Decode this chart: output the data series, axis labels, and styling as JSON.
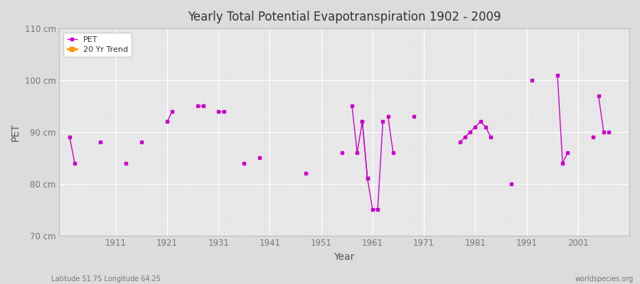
{
  "title": "Yearly Total Potential Evapotranspiration 1902 - 2009",
  "xlabel": "Year",
  "ylabel": "PET",
  "ylim": [
    70,
    110
  ],
  "xlim": [
    1900,
    2011
  ],
  "ytick_labels": [
    "70 cm",
    "80 cm",
    "90 cm",
    "100 cm",
    "110 cm"
  ],
  "ytick_values": [
    70,
    80,
    90,
    100,
    110
  ],
  "xtick_values": [
    1911,
    1921,
    1931,
    1941,
    1951,
    1961,
    1971,
    1981,
    1991,
    2001
  ],
  "pet_color": "#cc00cc",
  "trend_color": "#ff9900",
  "bg_outer": "#dcdcdc",
  "bg_plot": "#e8e8e8",
  "grid_color_major": "#ffffff",
  "grid_color_minor": "#d0d0d0",
  "bottom_left_text": "Latitude 51.75 Longitude 64.25",
  "bottom_right_text": "worldspecies.org",
  "pet_segments": [
    {
      "years": [
        1902,
        1903
      ],
      "values": [
        89,
        84
      ]
    },
    {
      "years": [
        1908
      ],
      "values": [
        88
      ]
    },
    {
      "years": [
        1913
      ],
      "values": [
        84
      ]
    },
    {
      "years": [
        1916
      ],
      "values": [
        88
      ]
    },
    {
      "years": [
        1921,
        1922
      ],
      "values": [
        92,
        94
      ]
    },
    {
      "years": [
        1927,
        1928
      ],
      "values": [
        95,
        95
      ]
    },
    {
      "years": [
        1931,
        1932
      ],
      "values": [
        94,
        94
      ]
    },
    {
      "years": [
        1936
      ],
      "values": [
        84
      ]
    },
    {
      "years": [
        1939
      ],
      "values": [
        85
      ]
    },
    {
      "years": [
        1948
      ],
      "values": [
        82
      ]
    },
    {
      "years": [
        1955
      ],
      "values": [
        86
      ]
    },
    {
      "years": [
        1957,
        1958,
        1959,
        1960
      ],
      "values": [
        95,
        86,
        92,
        81
      ]
    },
    {
      "years": [
        1959,
        1960,
        1961,
        1962,
        1963
      ],
      "values": [
        92,
        81,
        75,
        75,
        92
      ]
    },
    {
      "years": [
        1964,
        1965
      ],
      "values": [
        93,
        86
      ]
    },
    {
      "years": [
        1969
      ],
      "values": [
        93
      ]
    },
    {
      "years": [
        1978,
        1979,
        1980,
        1981,
        1982,
        1983,
        1984
      ],
      "values": [
        88,
        89,
        90,
        91,
        92,
        91,
        89
      ]
    },
    {
      "years": [
        1988
      ],
      "values": [
        80
      ]
    },
    {
      "years": [
        1992
      ],
      "values": [
        100
      ]
    },
    {
      "years": [
        1997,
        1998,
        1999
      ],
      "values": [
        101,
        84,
        86
      ]
    },
    {
      "years": [
        2004
      ],
      "values": [
        89
      ]
    },
    {
      "years": [
        2005,
        2006
      ],
      "values": [
        97,
        90
      ]
    },
    {
      "years": [
        2007
      ],
      "values": [
        90
      ]
    }
  ]
}
